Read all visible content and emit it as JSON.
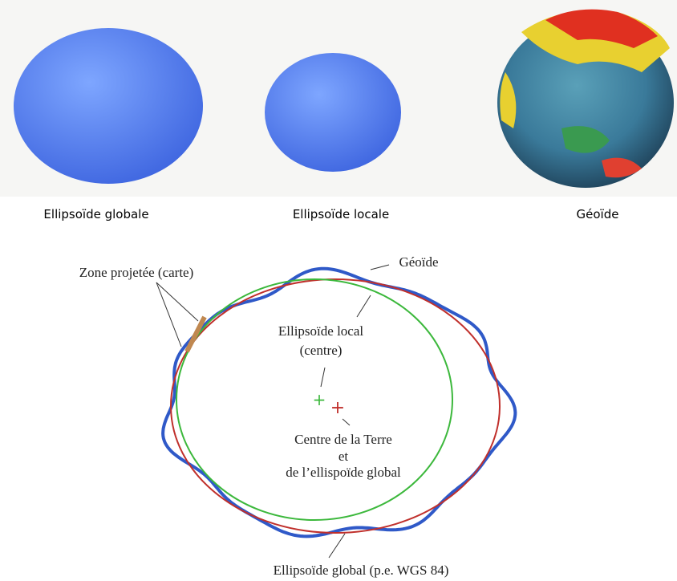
{
  "captions": [
    "Ellipsoïde globale",
    "Ellipsoïde locale",
    "Géoïde"
  ],
  "diagram": {
    "geoid": "Géoïde",
    "projected_zone": "Zone projetée (carte)",
    "local_ellipsoid": [
      "Ellipsoïde local",
      "(centre)"
    ],
    "earth_center": [
      "Centre de la Terre",
      "et",
      "de l’ellispoïde global"
    ],
    "global_ellipsoid": "Ellipsoïde global (p.e. WGS 84)"
  }
}
